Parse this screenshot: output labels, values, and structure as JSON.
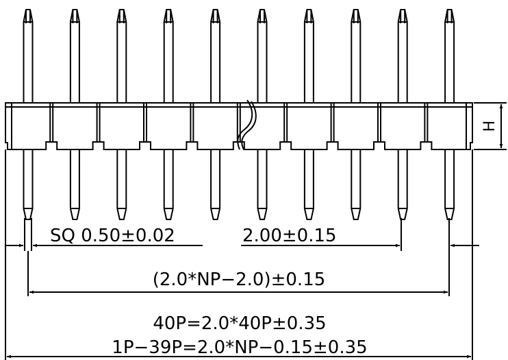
{
  "labels": {
    "height": "H",
    "pin_square": "SQ 0.50±0.02",
    "pitch": "2.00±0.15",
    "pin_span": "(2.0*NP−2.0)±0.15",
    "total_40p": "40P=2.0*40P±0.35",
    "total_1p_39p": "1P−39P=2.0*NP−0.15±0.35"
  },
  "drawing": {
    "type": "pin-header-dimension-drawing",
    "pins_drawn": 10,
    "has_break_mark": true,
    "stroke_color": "#000000",
    "background_color": "#ffffff"
  }
}
